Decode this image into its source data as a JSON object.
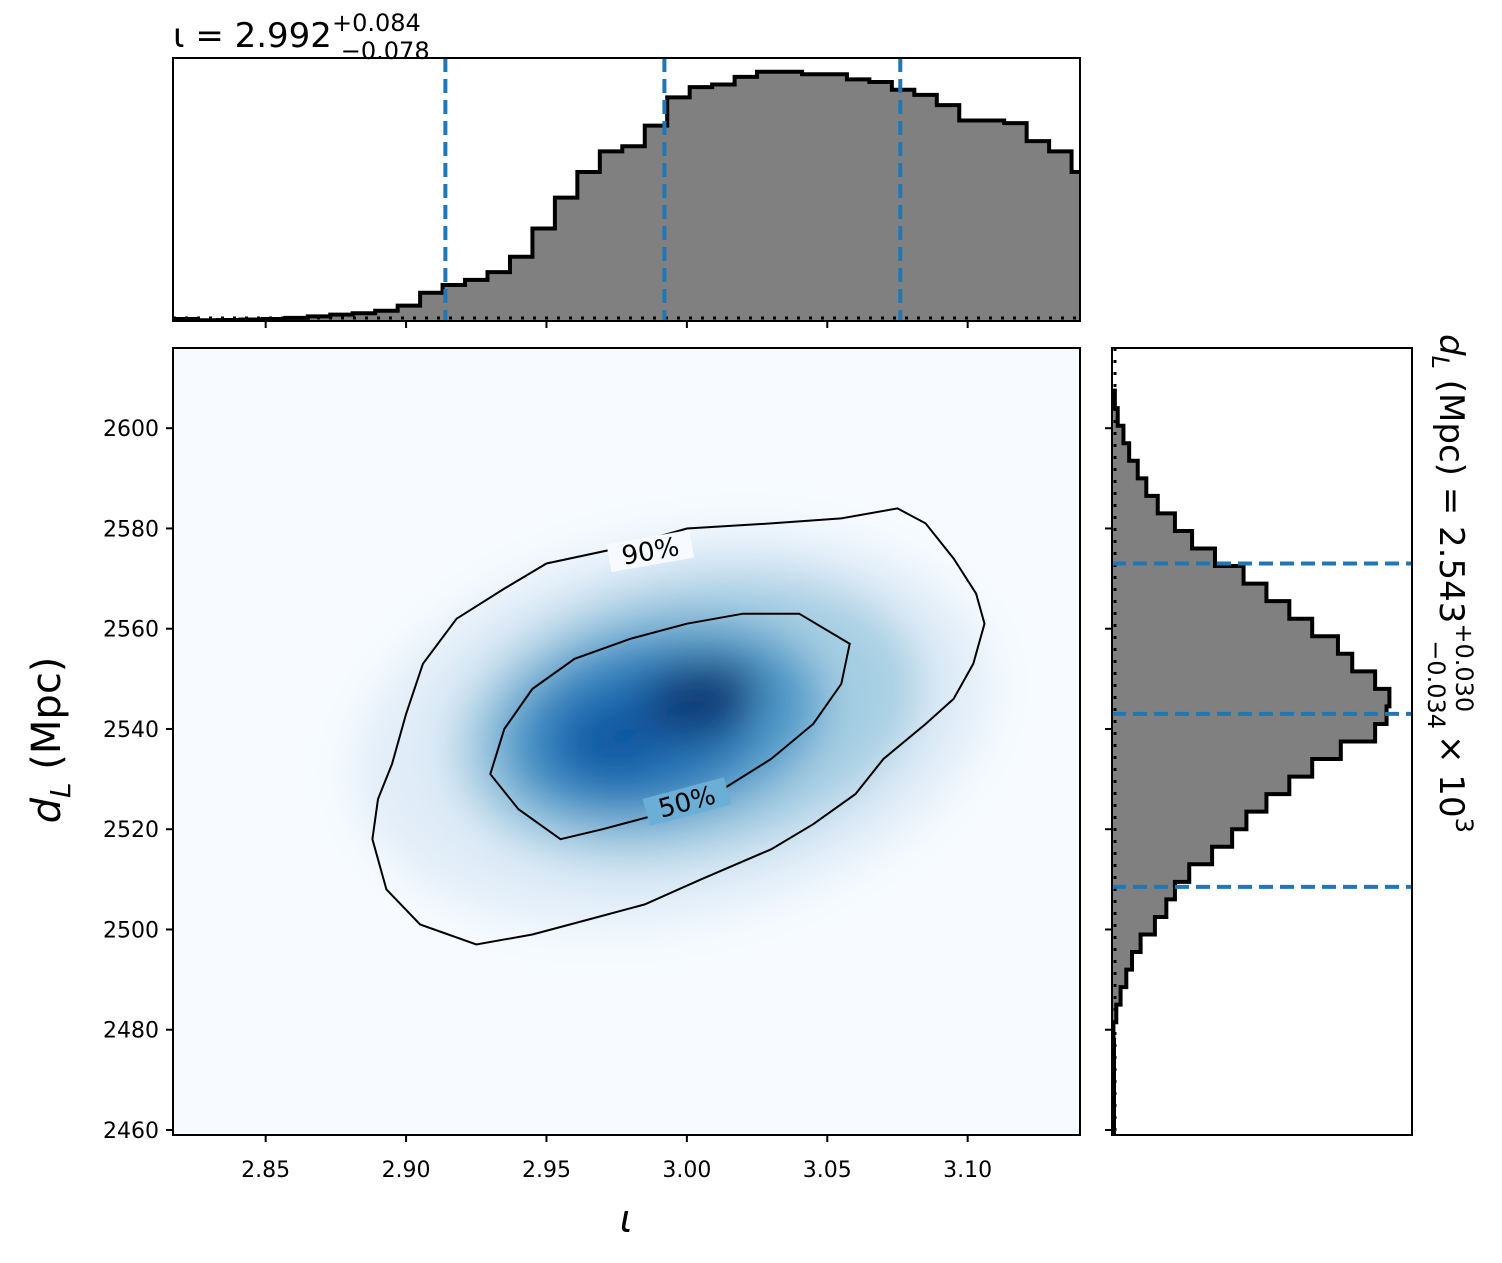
{
  "chart_data": [
    {
      "type": "area",
      "panel": "top-marginal",
      "title_main": "ι = 2.992",
      "title_sup": "+0.084",
      "title_sub": "−0.078",
      "median": 2.992,
      "lower": 2.914,
      "upper": 3.076,
      "xlim": [
        2.817,
        3.14
      ],
      "bin_edges_start": 2.825,
      "bin_width": 0.008,
      "heights": [
        0.3,
        0.4,
        0.6,
        0.8,
        1.2,
        1.8,
        2.5,
        3,
        4,
        6,
        11,
        14,
        16,
        19,
        25,
        36,
        48,
        58,
        66,
        68,
        76,
        87,
        91,
        92,
        95,
        97,
        97,
        96,
        96,
        94,
        93,
        90,
        88,
        84,
        78,
        78,
        77,
        70,
        66,
        58,
        57,
        47,
        40,
        36,
        30,
        22,
        17,
        14,
        11,
        7,
        6,
        4,
        2.5,
        1.8,
        1,
        0.3
      ],
      "y_max": 100
    },
    {
      "type": "heatmap",
      "panel": "joint",
      "xlabel": "ι",
      "ylabel": "d_L (Mpc)",
      "ylabel_main": "d",
      "ylabel_sub": "L",
      "ylabel_unit": " (Mpc)",
      "xlim": [
        2.817,
        3.14
      ],
      "ylim": [
        2459,
        2616
      ],
      "x_ticks": [
        "2.85",
        "2.90",
        "2.95",
        "3.00",
        "3.05",
        "3.10"
      ],
      "x_tick_values": [
        2.85,
        2.9,
        2.95,
        3.0,
        3.05,
        3.1
      ],
      "y_ticks": [
        "2460",
        "2480",
        "2500",
        "2520",
        "2540",
        "2560",
        "2580",
        "2600"
      ],
      "y_tick_values": [
        2460,
        2480,
        2500,
        2520,
        2540,
        2560,
        2580,
        2600
      ],
      "peak": [
        3.005,
        2546
      ],
      "contour_labels": [
        "90%",
        "50%"
      ],
      "contour_90": [
        [
          2.895,
          2533
        ],
        [
          2.9,
          2543
        ],
        [
          2.906,
          2553
        ],
        [
          2.918,
          2562
        ],
        [
          2.935,
          2568
        ],
        [
          2.95,
          2573
        ],
        [
          2.975,
          2576
        ],
        [
          3.0,
          2580
        ],
        [
          3.03,
          2581
        ],
        [
          3.055,
          2582
        ],
        [
          3.075,
          2584
        ],
        [
          3.085,
          2581
        ],
        [
          3.095,
          2574
        ],
        [
          3.103,
          2567
        ],
        [
          3.106,
          2561
        ],
        [
          3.102,
          2553
        ],
        [
          3.095,
          2546
        ],
        [
          3.085,
          2541
        ],
        [
          3.07,
          2534
        ],
        [
          3.06,
          2527
        ],
        [
          3.045,
          2521
        ],
        [
          3.03,
          2516
        ],
        [
          3.005,
          2510
        ],
        [
          2.985,
          2505
        ],
        [
          2.965,
          2502
        ],
        [
          2.945,
          2499
        ],
        [
          2.925,
          2497
        ],
        [
          2.905,
          2501
        ],
        [
          2.893,
          2508
        ],
        [
          2.888,
          2518
        ],
        [
          2.89,
          2526
        ]
      ],
      "contour_50": [
        [
          2.93,
          2531
        ],
        [
          2.935,
          2540
        ],
        [
          2.945,
          2548
        ],
        [
          2.96,
          2554
        ],
        [
          2.98,
          2558
        ],
        [
          3.0,
          2561
        ],
        [
          3.02,
          2563
        ],
        [
          3.04,
          2563
        ],
        [
          3.058,
          2557
        ],
        [
          3.055,
          2549
        ],
        [
          3.045,
          2541
        ],
        [
          3.03,
          2534
        ],
        [
          3.01,
          2527
        ],
        [
          2.99,
          2523
        ],
        [
          2.97,
          2520
        ],
        [
          2.955,
          2518
        ],
        [
          2.94,
          2524
        ]
      ]
    },
    {
      "type": "area",
      "panel": "right-marginal",
      "title_main": "d",
      "title_sub_L": "L",
      "title_mid": " (Mpc) = 2.543",
      "title_sup": "+0.030",
      "title_sub": "−0.034",
      "title_tail": "× 10",
      "title_exp": "3",
      "median": 2543,
      "lower": 2508.5,
      "upper": 2573,
      "ylim": [
        2459,
        2616
      ],
      "bin_edges_start": 2478,
      "bin_width": 3.5,
      "widths": [
        0.5,
        1.5,
        3,
        5,
        7,
        10,
        15,
        19,
        22,
        27,
        35,
        42,
        47,
        54,
        62,
        70,
        80,
        92,
        96,
        97,
        92,
        84,
        79,
        70,
        62,
        54,
        46,
        36,
        28,
        22,
        16,
        12,
        9,
        6,
        4,
        2,
        1
      ],
      "x_max": 100
    }
  ],
  "colors": {
    "hist_fill": "#808080",
    "guide_line": "#1f77b4",
    "heat_low": "#f7fbff",
    "heat_high": "#08306b"
  }
}
